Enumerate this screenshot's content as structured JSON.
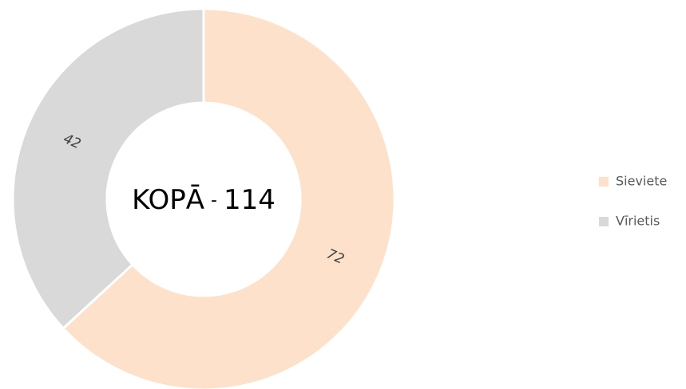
{
  "chart_data": {
    "type": "donut",
    "categories": [
      "Sieviete",
      "Vīrietis"
    ],
    "values": [
      72,
      42
    ],
    "colors": [
      "#fde1ca",
      "#d9d9d9"
    ],
    "center_label": "KOPĀ",
    "center_separator": "-",
    "total": 114,
    "legend": "right"
  }
}
